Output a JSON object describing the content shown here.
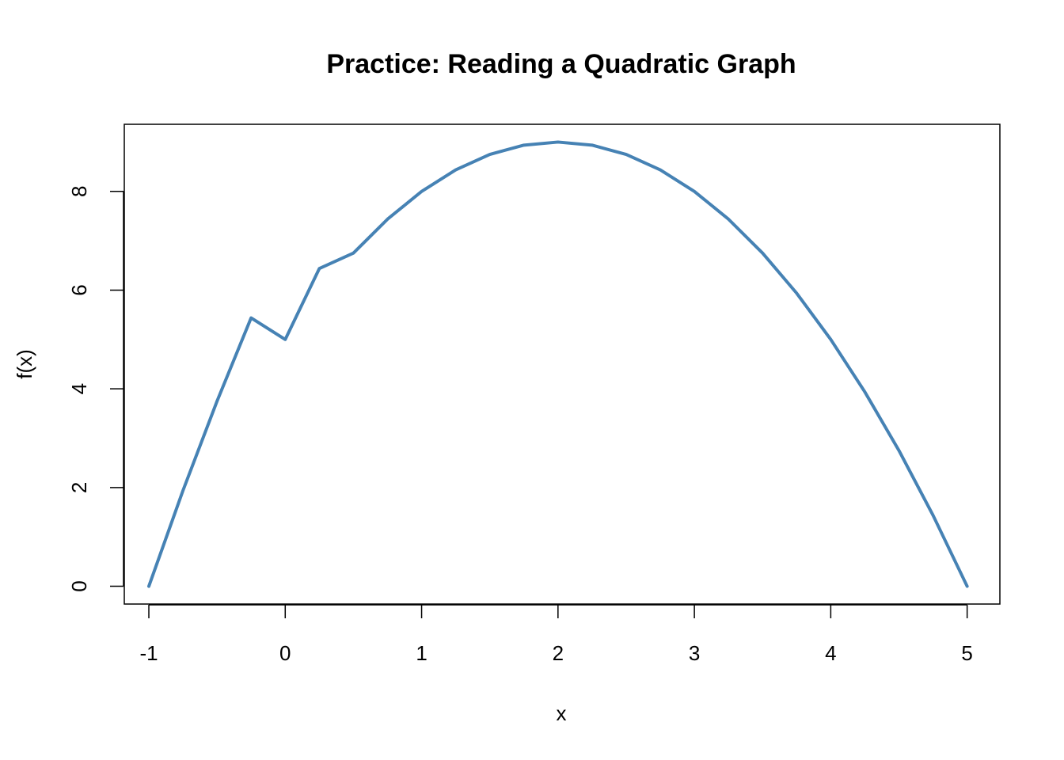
{
  "chart_data": {
    "type": "line",
    "title": "Practice: Reading a Quadratic Graph",
    "xlabel": "x",
    "ylabel": "f(x)",
    "xlim": [
      -1.18,
      5.24
    ],
    "ylim": [
      -0.36,
      9.36
    ],
    "x_ticks": [
      -1,
      0,
      1,
      2,
      3,
      4,
      5
    ],
    "x_tick_labels": [
      "-1",
      "0",
      "1",
      "2",
      "3",
      "4",
      "5"
    ],
    "y_ticks": [
      0,
      2,
      4,
      6,
      8
    ],
    "y_tick_labels": [
      "0",
      "2",
      "4",
      "6",
      "8"
    ],
    "grid": false,
    "series": [
      {
        "color": "#4682b4",
        "x": [
          -1,
          -0.75,
          -0.5,
          -0.25,
          0,
          0.25,
          0.5,
          0.75,
          1,
          1.25,
          1.5,
          1.75,
          2,
          2.25,
          2.5,
          2.75,
          3,
          3.25,
          3.5,
          3.75,
          4,
          4.25,
          4.5,
          4.75,
          5
        ],
        "y": [
          0,
          1.9375,
          3.75,
          5.4375,
          5,
          6.4375,
          6.75,
          7.4375,
          8,
          8.4375,
          8.75,
          8.9375,
          9,
          8.9375,
          8.75,
          8.4375,
          8,
          7.4375,
          6.75,
          5.9375,
          5,
          3.9375,
          2.75,
          1.4375,
          0
        ]
      }
    ]
  }
}
